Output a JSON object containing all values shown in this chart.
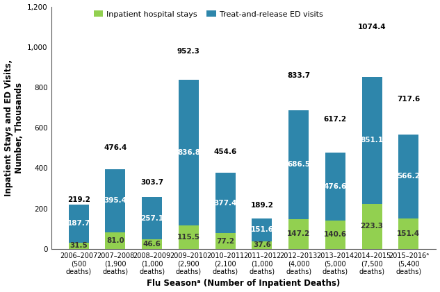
{
  "seasons": [
    "2006–2007",
    "2007–2008",
    "2008–2009",
    "2009–2010",
    "2010–2011",
    "2011–2012",
    "2012–2013",
    "2013–2014",
    "2014–2015",
    "2015–2016ᵃ"
  ],
  "deaths_line1": [
    "(500",
    "(1,900",
    "(1,000",
    "(2,900",
    "(2,100",
    "(1,000",
    "(4,000",
    "(5,000",
    "(7,500",
    "(5,400"
  ],
  "deaths_line2": [
    "deaths)",
    "deaths)",
    "deaths)",
    "deaths)",
    "deaths)",
    "deaths)",
    "deaths)",
    "deaths)",
    "deaths)",
    "deaths)"
  ],
  "inpatient": [
    31.5,
    81.0,
    46.6,
    115.5,
    77.2,
    37.6,
    147.2,
    140.6,
    223.3,
    151.4
  ],
  "ed_visits": [
    187.7,
    314.4,
    210.5,
    721.3,
    300.2,
    114.0,
    539.3,
    336.0,
    627.8,
    414.8
  ],
  "total": [
    219.2,
    476.4,
    303.7,
    952.3,
    454.6,
    189.2,
    833.7,
    617.2,
    1074.4,
    717.6
  ],
  "ed_label": [
    187.7,
    395.4,
    257.1,
    836.8,
    377.4,
    151.6,
    686.5,
    476.6,
    851.1,
    566.2
  ],
  "inpatient_color": "#92D050",
  "ed_color": "#2E86AB",
  "background_color": "#FFFFFF",
  "ylabel": "Inpatient Stays and ED Visits,\nNumber, Thousands",
  "xlabel": "Flu Seasonᵃ (Number of Inpatient Deaths)",
  "ylim": [
    0,
    1200
  ],
  "yticks": [
    0,
    200,
    400,
    600,
    800,
    1000,
    1200
  ],
  "legend_inpatient": "Inpatient hospital stays",
  "legend_ed": "Treat-and-release ED visits",
  "bar_width": 0.55,
  "label_fontsize": 7.5,
  "tick_fontsize": 7.5,
  "axis_label_fontsize": 8.5
}
